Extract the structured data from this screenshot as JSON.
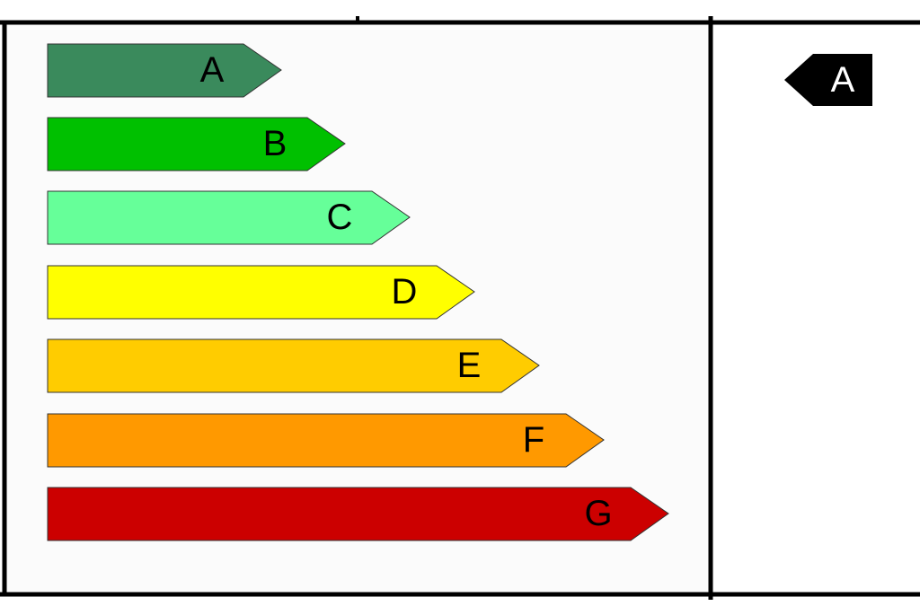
{
  "classes": [
    {
      "label": "A"
    },
    {
      "label": "B"
    },
    {
      "label": "C"
    },
    {
      "label": "D"
    },
    {
      "label": "E"
    },
    {
      "label": "F"
    },
    {
      "label": "G"
    }
  ],
  "rating": {
    "label": "A"
  }
}
